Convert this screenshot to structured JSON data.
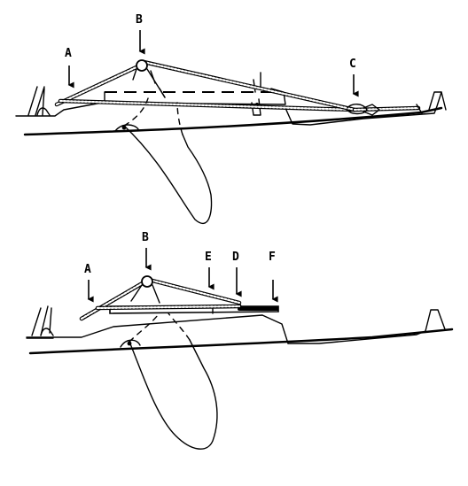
{
  "top_diagram": {
    "labels": {
      "a": "A",
      "b": "B",
      "c": "C"
    }
  },
  "bottom_diagram": {
    "labels": {
      "a": "A",
      "b": "B",
      "e": "E",
      "d": "D",
      "f": "F"
    }
  }
}
